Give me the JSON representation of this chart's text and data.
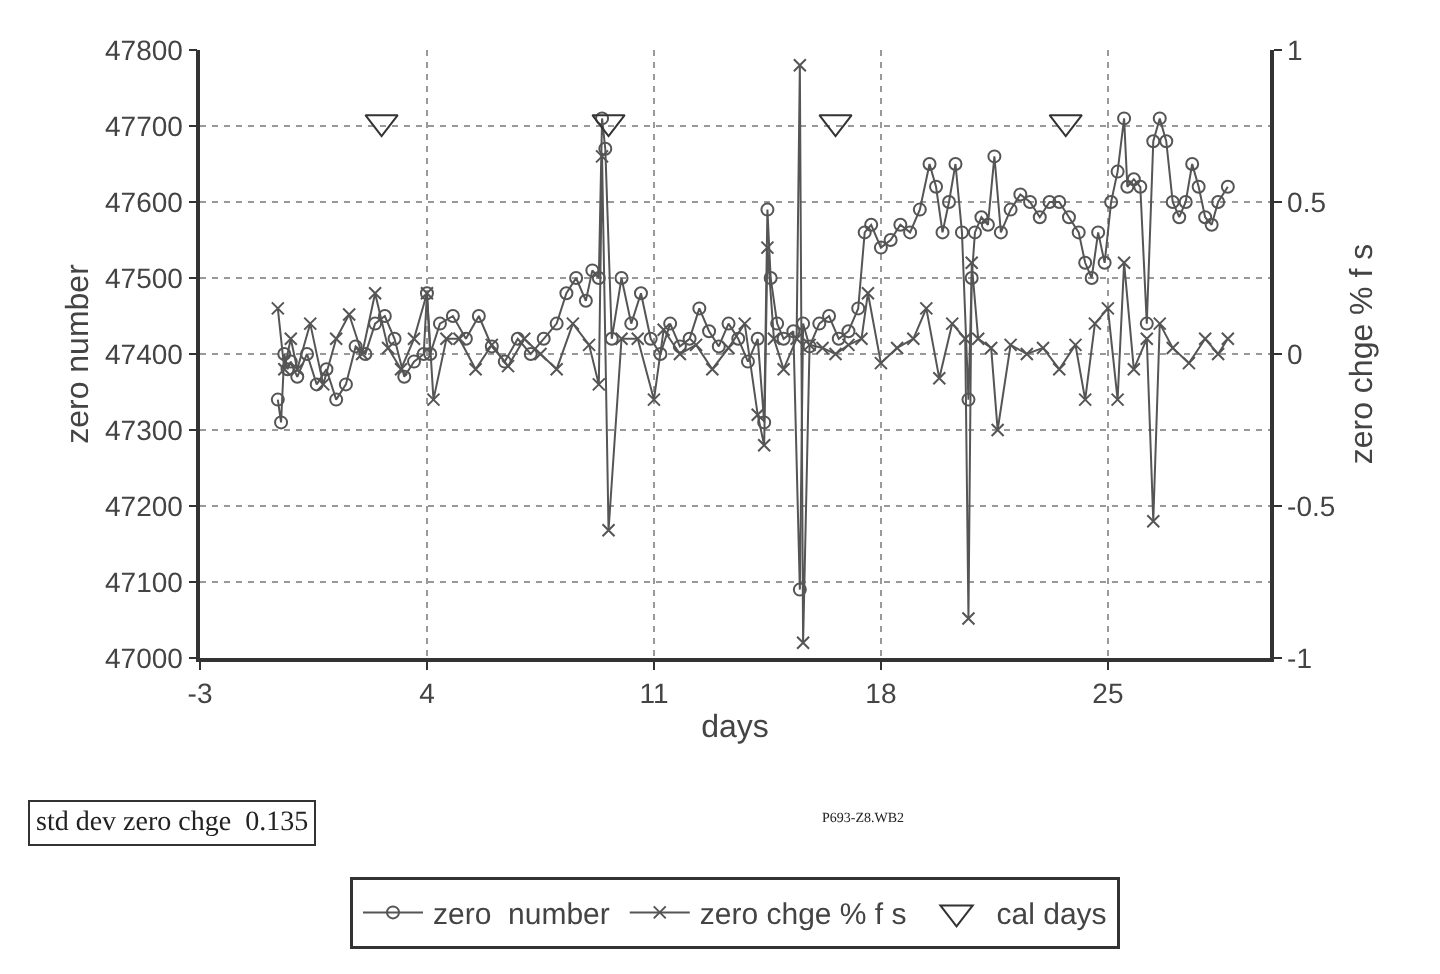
{
  "chart_data": {
    "type": "line",
    "xlabel": "days",
    "ylabel": "zero number",
    "y2label": "zero chge % f s",
    "xlim": [
      -3,
      30
    ],
    "xticks": [
      -3,
      4,
      11,
      18,
      25
    ],
    "ylim": [
      47000,
      47800
    ],
    "yticks": [
      47000,
      47100,
      47200,
      47300,
      47400,
      47500,
      47600,
      47700,
      47800
    ],
    "y2lim": [
      -1,
      1
    ],
    "y2ticks": [
      -1,
      -0.5,
      0,
      0.5,
      1
    ],
    "grid": true,
    "legend": "bottom",
    "annotations": [
      "std dev zero chge  0.135",
      "P693-Z8.WB2"
    ],
    "series": [
      {
        "name": "zero  number",
        "marker": "circle",
        "color": "#555555",
        "x": [
          -0.6,
          -0.5,
          -0.4,
          -0.3,
          -0.2,
          0,
          0.3,
          0.6,
          0.9,
          1.2,
          1.5,
          1.8,
          2.1,
          2.4,
          2.7,
          3.0,
          3.3,
          3.6,
          3.9,
          4.0,
          4.1,
          4.4,
          4.8,
          5.2,
          5.6,
          6.0,
          6.4,
          6.8,
          7.2,
          7.6,
          8.0,
          8.3,
          8.6,
          8.9,
          9.1,
          9.3,
          9.4,
          9.5,
          9.7,
          10.0,
          10.3,
          10.6,
          10.9,
          11.2,
          11.5,
          11.8,
          12.1,
          12.4,
          12.7,
          13.0,
          13.3,
          13.6,
          13.9,
          14.2,
          14.4,
          14.5,
          14.6,
          14.8,
          15.0,
          15.3,
          15.5,
          15.6,
          15.8,
          16.1,
          16.4,
          16.7,
          17.0,
          17.3,
          17.5,
          17.7,
          18.0,
          18.3,
          18.6,
          18.9,
          19.2,
          19.5,
          19.7,
          19.9,
          20.1,
          20.3,
          20.5,
          20.7,
          20.8,
          20.9,
          21.1,
          21.3,
          21.5,
          21.7,
          22.0,
          22.3,
          22.6,
          22.9,
          23.2,
          23.5,
          23.8,
          24.1,
          24.3,
          24.5,
          24.7,
          24.9,
          25.1,
          25.3,
          25.5,
          25.6,
          25.8,
          26.0,
          26.2,
          26.4,
          26.6,
          26.8,
          27.0,
          27.2,
          27.4,
          27.6,
          27.8,
          28.0,
          28.2,
          28.4,
          28.7
        ],
        "values": [
          47340,
          47310,
          47400,
          47380,
          47390,
          47370,
          47400,
          47360,
          47380,
          47340,
          47360,
          47410,
          47400,
          47440,
          47450,
          47420,
          47370,
          47390,
          47400,
          47480,
          47400,
          47440,
          47450,
          47420,
          47450,
          47410,
          47390,
          47420,
          47400,
          47420,
          47440,
          47480,
          47500,
          47470,
          47510,
          47500,
          47710,
          47670,
          47420,
          47500,
          47440,
          47480,
          47420,
          47400,
          47440,
          47410,
          47420,
          47460,
          47430,
          47410,
          47440,
          47420,
          47390,
          47420,
          47310,
          47590,
          47500,
          47440,
          47420,
          47430,
          47090,
          47440,
          47410,
          47440,
          47450,
          47420,
          47430,
          47460,
          47560,
          47570,
          47540,
          47550,
          47570,
          47560,
          47590,
          47650,
          47620,
          47560,
          47600,
          47650,
          47560,
          47340,
          47500,
          47560,
          47580,
          47570,
          47660,
          47560,
          47590,
          47610,
          47600,
          47580,
          47600,
          47600,
          47580,
          47560,
          47520,
          47500,
          47560,
          47520,
          47600,
          47640,
          47710,
          47620,
          47630,
          47620,
          47440,
          47680,
          47710,
          47680,
          47600,
          47580,
          47600,
          47650,
          47620,
          47580,
          47570,
          47600,
          47620
        ]
      },
      {
        "name": "zero chge % f s",
        "marker": "cross",
        "axis": "y2",
        "color": "#555555",
        "x": [
          -0.6,
          -0.4,
          -0.2,
          0,
          0.4,
          0.8,
          1.2,
          1.6,
          2.0,
          2.4,
          2.8,
          3.2,
          3.6,
          4.0,
          4.2,
          4.6,
          5.0,
          5.5,
          6.0,
          6.5,
          7.0,
          7.5,
          8.0,
          8.5,
          9.0,
          9.3,
          9.4,
          9.6,
          10.0,
          10.5,
          11.0,
          11.3,
          11.8,
          12.3,
          12.8,
          13.3,
          13.8,
          14.2,
          14.4,
          14.5,
          14.7,
          15.0,
          15.4,
          15.5,
          15.6,
          15.8,
          16.2,
          16.6,
          17.0,
          17.4,
          17.6,
          18.0,
          18.5,
          19.0,
          19.4,
          19.8,
          20.2,
          20.6,
          20.7,
          20.8,
          21.0,
          21.4,
          21.6,
          22.0,
          22.5,
          23.0,
          23.5,
          24.0,
          24.3,
          24.6,
          25.0,
          25.3,
          25.5,
          25.8,
          26.2,
          26.4,
          26.6,
          27.0,
          27.5,
          28.0,
          28.4,
          28.7
        ],
        "values": [
          0.15,
          -0.05,
          0.05,
          -0.05,
          0.1,
          -0.1,
          0.05,
          0.13,
          0,
          0.2,
          0.02,
          -0.05,
          0.05,
          0.2,
          -0.15,
          0.05,
          0.05,
          -0.05,
          0.03,
          -0.04,
          0.05,
          0,
          -0.05,
          0.1,
          0.03,
          -0.1,
          0.65,
          -0.58,
          0.05,
          0.05,
          -0.15,
          0.08,
          0,
          0.03,
          -0.05,
          0.02,
          0.1,
          -0.2,
          -0.3,
          0.35,
          0.05,
          -0.05,
          0.05,
          0.95,
          -0.95,
          0.03,
          0.02,
          0,
          0.03,
          0.05,
          0.2,
          -0.03,
          0.02,
          0.05,
          0.15,
          -0.08,
          0.1,
          0.05,
          -0.87,
          0.3,
          0.05,
          0.02,
          -0.25,
          0.03,
          0,
          0.02,
          -0.05,
          0.03,
          -0.15,
          0.1,
          0.15,
          -0.15,
          0.3,
          -0.05,
          0.05,
          -0.55,
          0.1,
          0.02,
          -0.03,
          0.05,
          0,
          0.05
        ]
      },
      {
        "name": "cal days",
        "type": "scatter",
        "marker": "triangle",
        "color": "#333333",
        "x": [
          2.6,
          9.6,
          16.6,
          23.7
        ],
        "values": [
          47705,
          47705,
          47705,
          47705
        ]
      }
    ]
  }
}
